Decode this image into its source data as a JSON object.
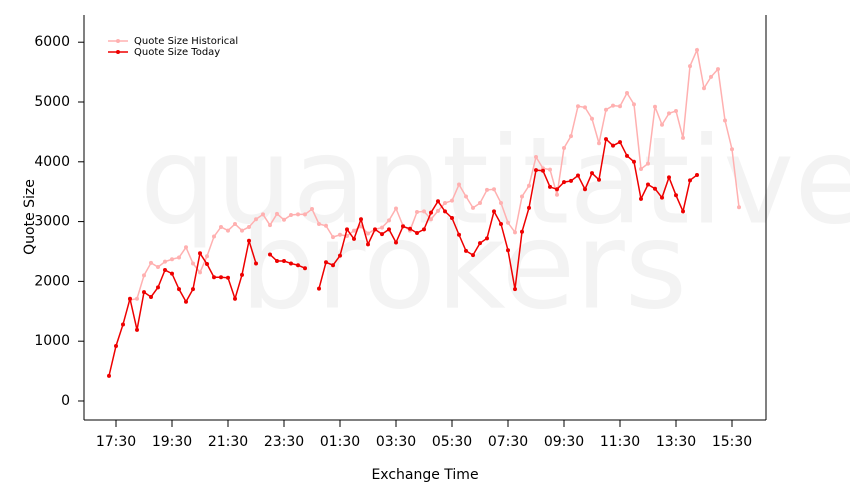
{
  "chart_data": {
    "type": "line",
    "watermark": [
      "quantitative",
      "brokers"
    ],
    "y_label": "Quote Size",
    "x_label": "Exchange Time",
    "categories": [
      null,
      "17:30",
      null,
      null,
      null,
      null,
      null,
      null,
      null,
      "19:30",
      null,
      null,
      null,
      null,
      null,
      null,
      null,
      "21:30",
      null,
      null,
      null,
      null,
      null,
      null,
      null,
      "23:30",
      null,
      null,
      null,
      null,
      null,
      null,
      null,
      "01:30",
      null,
      null,
      null,
      null,
      null,
      null,
      null,
      "03:30",
      null,
      null,
      null,
      null,
      null,
      null,
      null,
      "05:30",
      null,
      null,
      null,
      null,
      null,
      null,
      null,
      "07:30",
      null,
      null,
      null,
      null,
      null,
      null,
      null,
      "09:30",
      null,
      null,
      null,
      null,
      null,
      null,
      null,
      "11:30",
      null,
      null,
      null,
      null,
      null,
      null,
      null,
      "13:30",
      null,
      null,
      null,
      null,
      null,
      null,
      null,
      "15:30",
      null
    ],
    "series": [
      {
        "name": "Quote Size Historical",
        "color": "#ffb0b0",
        "values": [
          null,
          null,
          null,
          1690,
          1710,
          2100,
          2310,
          2240,
          2330,
          2370,
          2400,
          2570,
          2300,
          2150,
          2420,
          2750,
          2910,
          2850,
          2960,
          2850,
          2910,
          3040,
          3120,
          2940,
          3130,
          3030,
          3110,
          3120,
          3120,
          3210,
          2960,
          2930,
          2740,
          2780,
          2760,
          2850,
          2920,
          2800,
          2870,
          2900,
          3020,
          3220,
          2930,
          2850,
          3160,
          3170,
          3040,
          3180,
          3310,
          3350,
          3620,
          3420,
          3230,
          3310,
          3530,
          3540,
          3310,
          2980,
          2820,
          3420,
          3600,
          4080,
          3890,
          3870,
          3450,
          4230,
          4430,
          4930,
          4910,
          4720,
          4310,
          4870,
          4940,
          4930,
          5150,
          4960,
          3880,
          3970,
          4920,
          4620,
          4810,
          4850,
          4400,
          5600,
          5870,
          5230,
          5420,
          5550,
          4690,
          4210,
          3240
        ]
      },
      {
        "name": "Quote Size Today",
        "color": "#ee0000",
        "values": [
          420,
          920,
          1280,
          1710,
          1190,
          1820,
          1740,
          1900,
          2190,
          2130,
          1870,
          1660,
          1870,
          2470,
          2290,
          2070,
          2070,
          2060,
          1710,
          2110,
          2680,
          2300,
          null,
          2450,
          2340,
          2340,
          2300,
          2270,
          2220,
          null,
          1880,
          2320,
          2270,
          2430,
          2870,
          2710,
          3040,
          2620,
          2870,
          2790,
          2870,
          2650,
          2920,
          2880,
          2810,
          2870,
          3150,
          3340,
          3170,
          3060,
          2780,
          2510,
          2440,
          2640,
          2720,
          3170,
          2960,
          2520,
          1870,
          2830,
          3230,
          3860,
          3850,
          3580,
          3540,
          3660,
          3680,
          3770,
          3540,
          3810,
          3700,
          4380,
          4270,
          4330,
          4100,
          4000,
          3380,
          3620,
          3550,
          3400,
          3740,
          3440,
          3170,
          3690,
          3780,
          null,
          null,
          null,
          null,
          null,
          null
        ]
      }
    ],
    "ylim": [
      -318,
      6455
    ],
    "yticks": [
      0,
      1000,
      2000,
      3000,
      4000,
      5000,
      6000
    ],
    "legend": "top-left"
  }
}
